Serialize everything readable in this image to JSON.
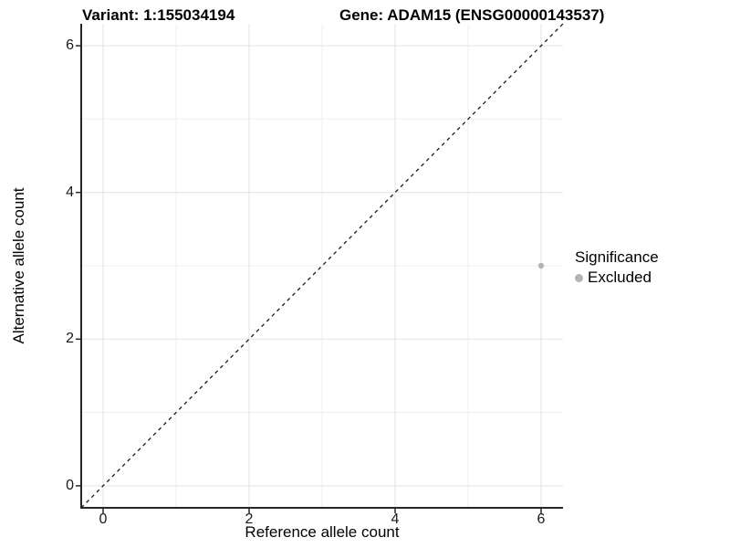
{
  "figure": {
    "title_left": "Variant: 1:155034194",
    "title_right": "Gene: ADAM15 (ENSG00000143537)"
  },
  "chart_data": {
    "type": "scatter",
    "title": "Variant: 1:155034194",
    "subtitle": "Gene: ADAM15 (ENSG00000143537)",
    "xlabel": "Reference allele count",
    "ylabel": "Alternative allele count",
    "xlim": [
      -0.3,
      6.3
    ],
    "ylim": [
      -0.3,
      6.3
    ],
    "xticks": [
      0,
      2,
      4,
      6
    ],
    "yticks": [
      0,
      2,
      4,
      6
    ],
    "minor_gridlines_x": [
      1,
      3,
      5
    ],
    "minor_gridlines_y": [
      1,
      3,
      5
    ],
    "grid": true,
    "reference_line": {
      "style": "dashed",
      "x1": -0.3,
      "y1": -0.3,
      "x2": 6.3,
      "y2": 6.3
    },
    "series": [
      {
        "name": "Excluded",
        "color": "#b3b3b3",
        "points": [
          {
            "x": 6,
            "y": 3
          }
        ]
      }
    ],
    "legend": {
      "title": "Significance",
      "position": "right",
      "items": [
        {
          "label": "Excluded",
          "color": "#b3b3b3"
        }
      ]
    }
  },
  "colors": {
    "background": "#ffffff",
    "text": "#000000",
    "tick_text": "#1a1a1a",
    "axis_line": "#262626",
    "grid_major": "#e3e3e3",
    "grid_minor": "#efefef",
    "dashed_line": "#1a1a1a",
    "point": "#b3b3b3"
  }
}
